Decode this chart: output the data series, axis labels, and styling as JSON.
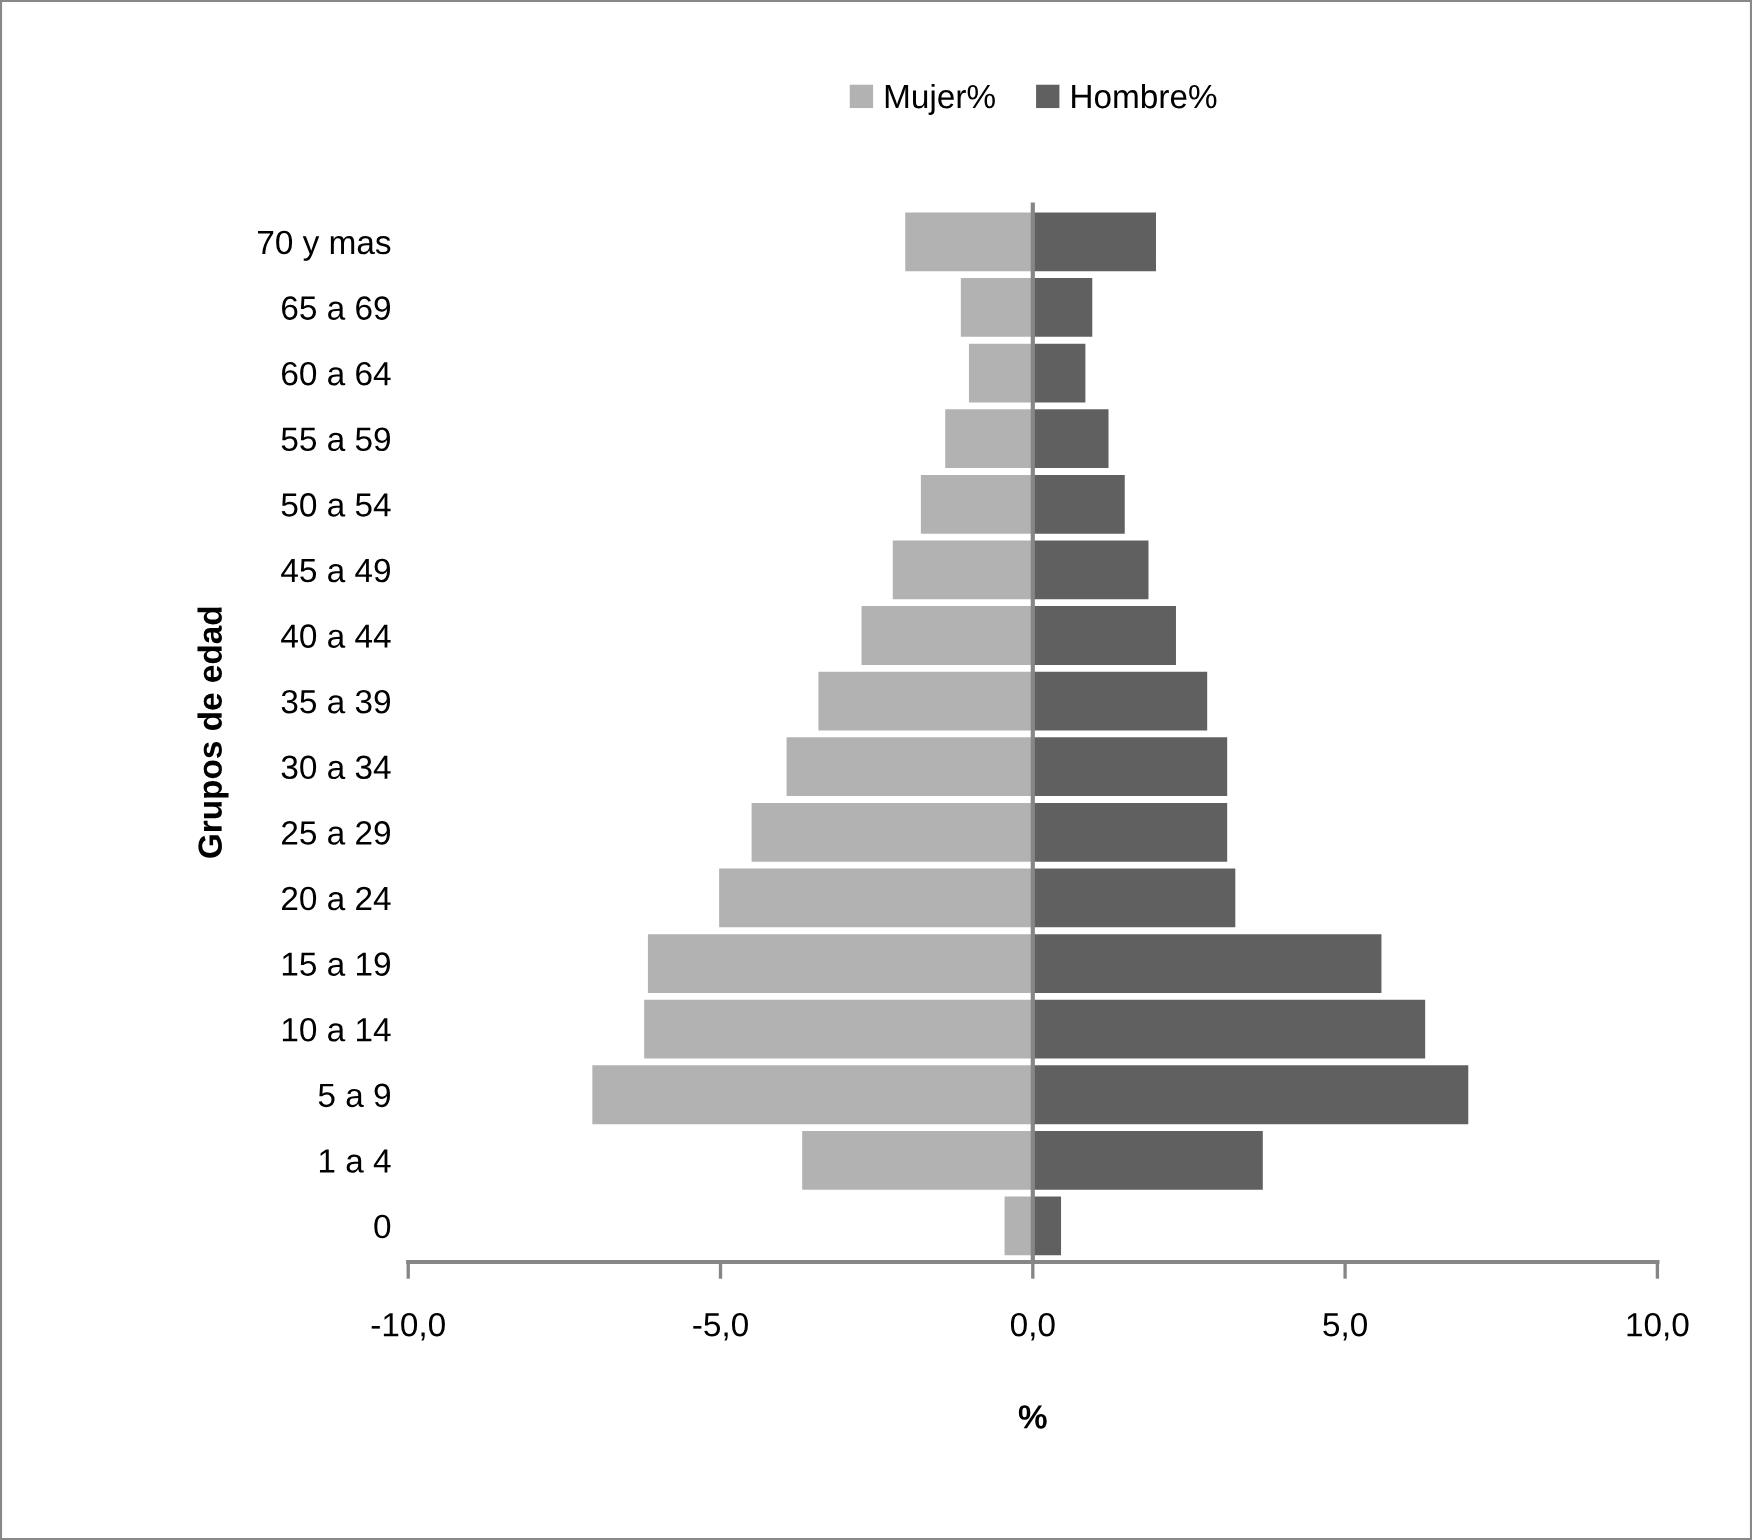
{
  "chart_data": {
    "type": "bar",
    "orientation": "horizontal",
    "xlabel": "%",
    "ylabel": "Grupos de edad",
    "categories": [
      "70 y mas",
      "65 a 69",
      "60 a 64",
      "55 a 59",
      "50 a 54",
      "45 a 49",
      "40 a 44",
      "35 a 39",
      "30 a 34",
      "25 a 29",
      "20 a 24",
      "15 a 19",
      "10 a 14",
      "5 a 9",
      "1 a 4",
      "0"
    ],
    "series": [
      {
        "name": "Mujer%",
        "color": "#b2b2b2",
        "values": [
          -2.06,
          -1.17,
          -1.04,
          -1.42,
          -1.81,
          -2.26,
          -2.76,
          -3.45,
          -3.96,
          -4.52,
          -5.04,
          -6.18,
          -6.24,
          -7.07,
          -3.71,
          -0.47
        ]
      },
      {
        "name": "Hombre%",
        "color": "#606060",
        "values": [
          1.99,
          0.97,
          0.86,
          1.23,
          1.49,
          1.87,
          2.31,
          2.81,
          3.13,
          3.13,
          3.26,
          5.6,
          6.3,
          6.99,
          3.7,
          0.47
        ]
      }
    ],
    "xlim": [
      -10,
      10
    ],
    "xticks": [
      {
        "value": -10,
        "label": "-10,0"
      },
      {
        "value": -5,
        "label": "-5,0"
      },
      {
        "value": 0,
        "label": "0,0"
      },
      {
        "value": 5,
        "label": "5,0"
      },
      {
        "value": 10,
        "label": "10,0"
      }
    ],
    "ref_lines": [
      {
        "axis": "x",
        "value": 0,
        "color": "#868686"
      }
    ],
    "stacked": true,
    "grid": false,
    "legend": "top"
  }
}
